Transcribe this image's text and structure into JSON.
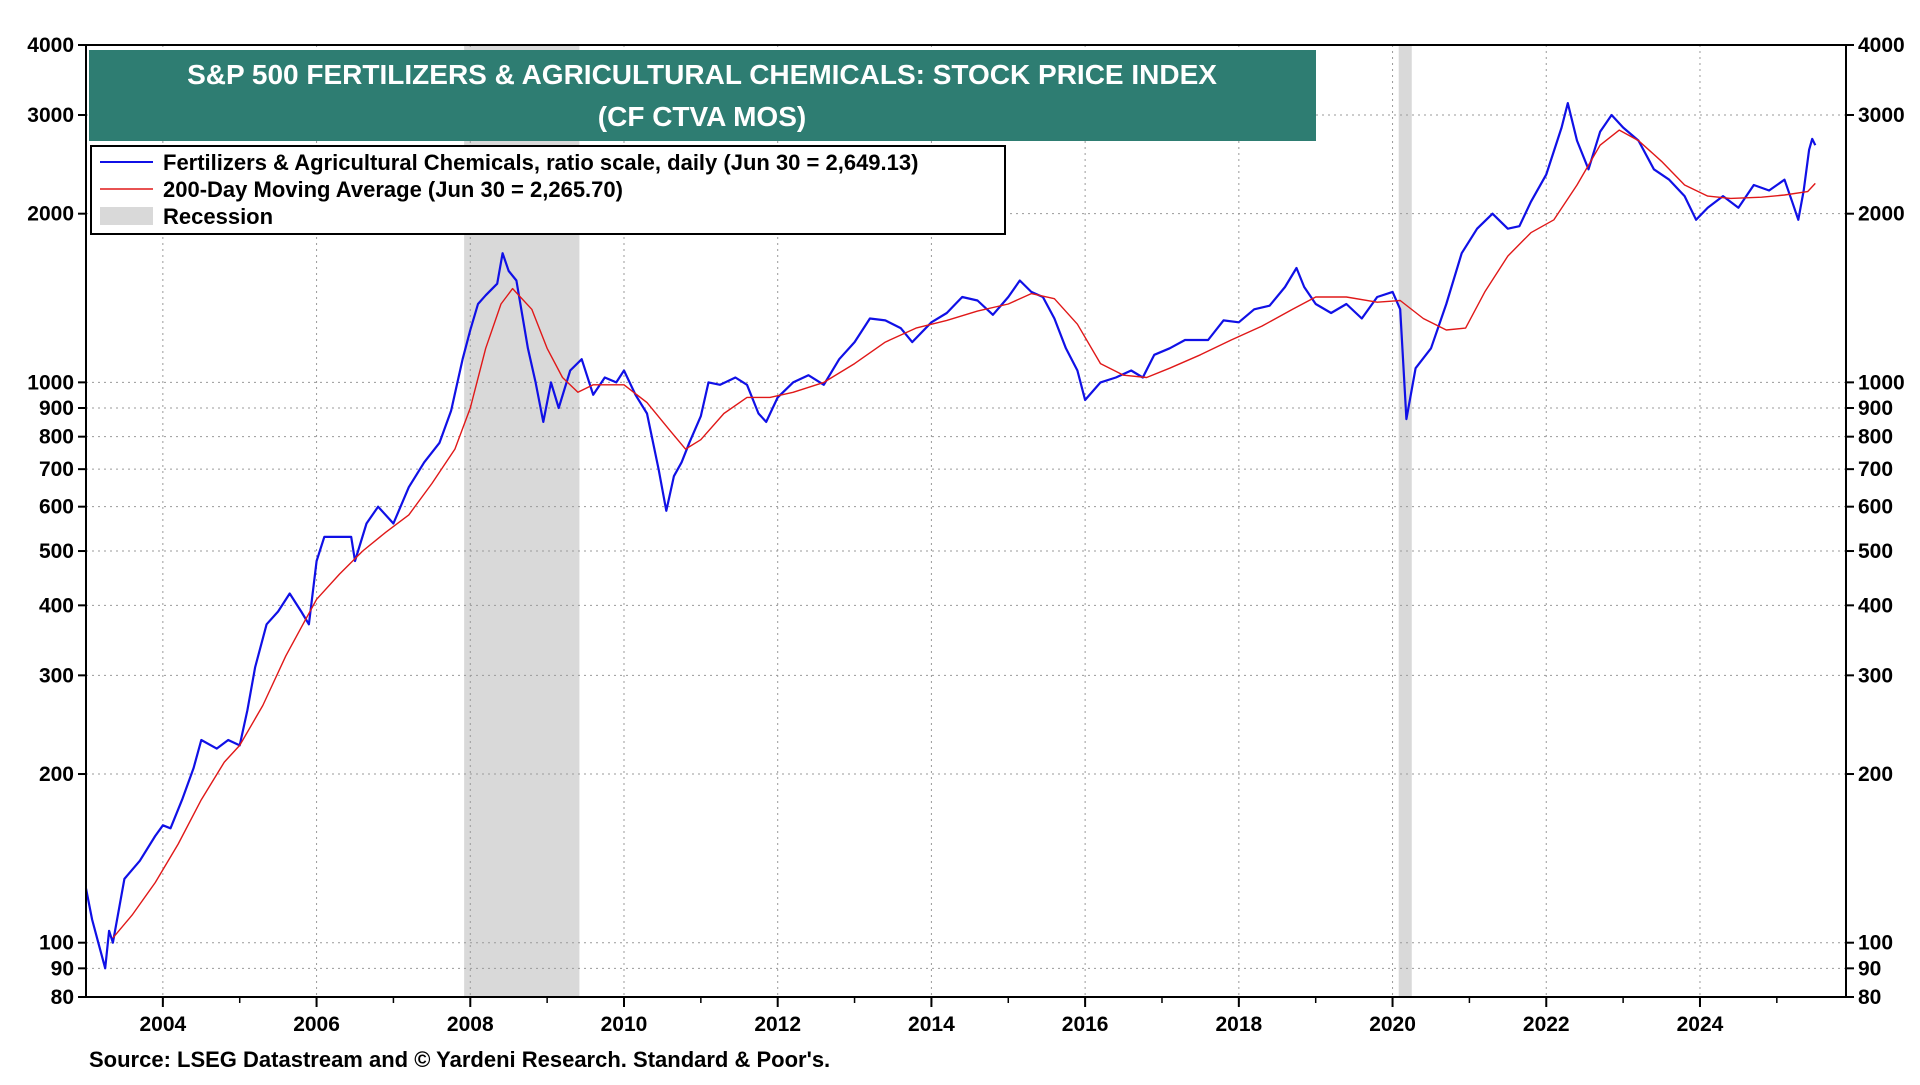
{
  "colors": {
    "title_bg": "#2E7D72",
    "title_text": "#ffffff",
    "price_line": "#1010E6",
    "ma_line": "#E01818",
    "recession": "#D9D9D9",
    "grid": "#9A9A9A"
  },
  "chart_data": {
    "type": "line",
    "title_line1": "S&P 500 FERTILIZERS & AGRICULTURAL CHEMICALS: STOCK PRICE INDEX",
    "title_line2": "(CF CTVA MOS)",
    "y_scale": "log",
    "ylim": [
      80,
      4000
    ],
    "xlim": [
      2003.0,
      2025.9
    ],
    "grid": true,
    "legend_position": "top-left",
    "y_ticks": [
      80,
      90,
      100,
      200,
      300,
      400,
      500,
      600,
      700,
      800,
      900,
      1000,
      2000,
      3000,
      4000
    ],
    "y_tick_labels": [
      "80",
      "90",
      "100",
      "200",
      "300",
      "400",
      "500",
      "600",
      "700",
      "800",
      "900",
      "1000",
      "2000",
      "3000",
      "4000"
    ],
    "x_ticks": [
      2004,
      2006,
      2008,
      2010,
      2012,
      2014,
      2016,
      2018,
      2020,
      2022,
      2024
    ],
    "x_tick_labels": [
      "2004",
      "2006",
      "2008",
      "2010",
      "2012",
      "2014",
      "2016",
      "2018",
      "2020",
      "2022",
      "2024"
    ],
    "recessions": [
      [
        2007.92,
        2009.42
      ],
      [
        2020.08,
        2020.25
      ]
    ],
    "legend": [
      {
        "label": "Fertilizers & Agricultural Chemicals, ratio scale, daily (Jun 30 = 2,649.13)",
        "type": "line",
        "color": "#1010E6"
      },
      {
        "label": "200-Day Moving Average (Jun 30 = 2,265.70)",
        "type": "line",
        "color": "#E01818"
      },
      {
        "label": "Recession",
        "type": "box",
        "color": "#D9D9D9"
      }
    ],
    "series": [
      {
        "name": "Fertilizers & Agricultural Chemicals, ratio scale, daily (Jun 30 = 2,649.13)",
        "color": "#1010E6",
        "points": [
          [
            2003.0,
            125
          ],
          [
            2003.08,
            110
          ],
          [
            2003.16,
            100
          ],
          [
            2003.25,
            90
          ],
          [
            2003.3,
            105
          ],
          [
            2003.35,
            100
          ],
          [
            2003.5,
            130
          ],
          [
            2003.7,
            140
          ],
          [
            2003.9,
            155
          ],
          [
            2004.0,
            162
          ],
          [
            2004.1,
            160
          ],
          [
            2004.25,
            180
          ],
          [
            2004.4,
            205
          ],
          [
            2004.5,
            230
          ],
          [
            2004.7,
            222
          ],
          [
            2004.85,
            230
          ],
          [
            2005.0,
            225
          ],
          [
            2005.1,
            260
          ],
          [
            2005.2,
            310
          ],
          [
            2005.35,
            370
          ],
          [
            2005.5,
            390
          ],
          [
            2005.65,
            420
          ],
          [
            2005.8,
            390
          ],
          [
            2005.9,
            370
          ],
          [
            2006.0,
            480
          ],
          [
            2006.1,
            530
          ],
          [
            2006.3,
            530
          ],
          [
            2006.45,
            530
          ],
          [
            2006.5,
            480
          ],
          [
            2006.65,
            560
          ],
          [
            2006.8,
            600
          ],
          [
            2007.0,
            560
          ],
          [
            2007.2,
            650
          ],
          [
            2007.4,
            720
          ],
          [
            2007.6,
            780
          ],
          [
            2007.75,
            890
          ],
          [
            2007.9,
            1100
          ],
          [
            2008.0,
            1240
          ],
          [
            2008.1,
            1380
          ],
          [
            2008.2,
            1430
          ],
          [
            2008.35,
            1500
          ],
          [
            2008.42,
            1700
          ],
          [
            2008.5,
            1580
          ],
          [
            2008.6,
            1520
          ],
          [
            2008.75,
            1150
          ],
          [
            2008.85,
            1000
          ],
          [
            2008.95,
            850
          ],
          [
            2009.05,
            1000
          ],
          [
            2009.15,
            900
          ],
          [
            2009.3,
            1050
          ],
          [
            2009.45,
            1100
          ],
          [
            2009.6,
            950
          ],
          [
            2009.75,
            1020
          ],
          [
            2009.9,
            1000
          ],
          [
            2010.0,
            1050
          ],
          [
            2010.15,
            950
          ],
          [
            2010.3,
            880
          ],
          [
            2010.45,
            700
          ],
          [
            2010.55,
            590
          ],
          [
            2010.65,
            680
          ],
          [
            2010.75,
            720
          ],
          [
            2010.85,
            780
          ],
          [
            2011.0,
            870
          ],
          [
            2011.1,
            1000
          ],
          [
            2011.25,
            990
          ],
          [
            2011.45,
            1020
          ],
          [
            2011.6,
            990
          ],
          [
            2011.75,
            880
          ],
          [
            2011.85,
            850
          ],
          [
            2012.0,
            940
          ],
          [
            2012.2,
            1000
          ],
          [
            2012.4,
            1030
          ],
          [
            2012.6,
            990
          ],
          [
            2012.8,
            1100
          ],
          [
            2013.0,
            1180
          ],
          [
            2013.2,
            1300
          ],
          [
            2013.4,
            1290
          ],
          [
            2013.6,
            1250
          ],
          [
            2013.75,
            1180
          ],
          [
            2014.0,
            1280
          ],
          [
            2014.2,
            1330
          ],
          [
            2014.4,
            1420
          ],
          [
            2014.6,
            1400
          ],
          [
            2014.8,
            1320
          ],
          [
            2015.0,
            1420
          ],
          [
            2015.15,
            1520
          ],
          [
            2015.3,
            1450
          ],
          [
            2015.45,
            1420
          ],
          [
            2015.6,
            1300
          ],
          [
            2015.75,
            1150
          ],
          [
            2015.9,
            1050
          ],
          [
            2016.0,
            930
          ],
          [
            2016.2,
            1000
          ],
          [
            2016.4,
            1020
          ],
          [
            2016.6,
            1050
          ],
          [
            2016.75,
            1020
          ],
          [
            2016.9,
            1120
          ],
          [
            2017.1,
            1150
          ],
          [
            2017.3,
            1190
          ],
          [
            2017.6,
            1190
          ],
          [
            2017.8,
            1290
          ],
          [
            2018.0,
            1280
          ],
          [
            2018.2,
            1350
          ],
          [
            2018.4,
            1370
          ],
          [
            2018.6,
            1480
          ],
          [
            2018.75,
            1600
          ],
          [
            2018.85,
            1480
          ],
          [
            2019.0,
            1380
          ],
          [
            2019.2,
            1330
          ],
          [
            2019.4,
            1380
          ],
          [
            2019.6,
            1300
          ],
          [
            2019.8,
            1420
          ],
          [
            2020.0,
            1450
          ],
          [
            2020.1,
            1350
          ],
          [
            2020.18,
            860
          ],
          [
            2020.3,
            1060
          ],
          [
            2020.5,
            1150
          ],
          [
            2020.7,
            1380
          ],
          [
            2020.9,
            1700
          ],
          [
            2021.1,
            1880
          ],
          [
            2021.3,
            2000
          ],
          [
            2021.5,
            1880
          ],
          [
            2021.65,
            1900
          ],
          [
            2021.8,
            2100
          ],
          [
            2022.0,
            2350
          ],
          [
            2022.2,
            2850
          ],
          [
            2022.28,
            3150
          ],
          [
            2022.4,
            2700
          ],
          [
            2022.55,
            2400
          ],
          [
            2022.7,
            2800
          ],
          [
            2022.85,
            3000
          ],
          [
            2023.0,
            2850
          ],
          [
            2023.2,
            2700
          ],
          [
            2023.4,
            2400
          ],
          [
            2023.6,
            2300
          ],
          [
            2023.8,
            2150
          ],
          [
            2023.95,
            1950
          ],
          [
            2024.1,
            2050
          ],
          [
            2024.3,
            2150
          ],
          [
            2024.5,
            2050
          ],
          [
            2024.7,
            2250
          ],
          [
            2024.9,
            2200
          ],
          [
            2025.1,
            2300
          ],
          [
            2025.2,
            2100
          ],
          [
            2025.28,
            1950
          ],
          [
            2025.35,
            2200
          ],
          [
            2025.42,
            2600
          ],
          [
            2025.46,
            2720
          ],
          [
            2025.5,
            2650
          ]
        ]
      },
      {
        "name": "200-Day Moving Average (Jun 30 = 2,265.70)",
        "color": "#E01818",
        "points": [
          [
            2003.35,
            102
          ],
          [
            2003.6,
            112
          ],
          [
            2003.9,
            128
          ],
          [
            2004.2,
            150
          ],
          [
            2004.5,
            180
          ],
          [
            2004.8,
            210
          ],
          [
            2005.0,
            225
          ],
          [
            2005.3,
            265
          ],
          [
            2005.6,
            325
          ],
          [
            2005.8,
            365
          ],
          [
            2006.0,
            410
          ],
          [
            2006.3,
            455
          ],
          [
            2006.6,
            500
          ],
          [
            2006.9,
            540
          ],
          [
            2007.2,
            580
          ],
          [
            2007.5,
            660
          ],
          [
            2007.8,
            760
          ],
          [
            2008.0,
            900
          ],
          [
            2008.2,
            1150
          ],
          [
            2008.4,
            1380
          ],
          [
            2008.55,
            1470
          ],
          [
            2008.8,
            1350
          ],
          [
            2009.0,
            1150
          ],
          [
            2009.2,
            1020
          ],
          [
            2009.4,
            960
          ],
          [
            2009.6,
            990
          ],
          [
            2009.8,
            990
          ],
          [
            2010.0,
            990
          ],
          [
            2010.3,
            920
          ],
          [
            2010.6,
            820
          ],
          [
            2010.8,
            760
          ],
          [
            2011.0,
            790
          ],
          [
            2011.3,
            880
          ],
          [
            2011.6,
            940
          ],
          [
            2011.9,
            940
          ],
          [
            2012.2,
            960
          ],
          [
            2012.6,
            1000
          ],
          [
            2013.0,
            1080
          ],
          [
            2013.4,
            1180
          ],
          [
            2013.8,
            1250
          ],
          [
            2014.2,
            1290
          ],
          [
            2014.6,
            1340
          ],
          [
            2015.0,
            1380
          ],
          [
            2015.3,
            1440
          ],
          [
            2015.6,
            1410
          ],
          [
            2015.9,
            1270
          ],
          [
            2016.2,
            1080
          ],
          [
            2016.5,
            1030
          ],
          [
            2016.8,
            1020
          ],
          [
            2017.1,
            1060
          ],
          [
            2017.5,
            1120
          ],
          [
            2017.9,
            1190
          ],
          [
            2018.3,
            1260
          ],
          [
            2018.7,
            1350
          ],
          [
            2019.0,
            1420
          ],
          [
            2019.4,
            1420
          ],
          [
            2019.8,
            1390
          ],
          [
            2020.1,
            1400
          ],
          [
            2020.4,
            1300
          ],
          [
            2020.7,
            1240
          ],
          [
            2020.95,
            1250
          ],
          [
            2021.2,
            1450
          ],
          [
            2021.5,
            1680
          ],
          [
            2021.8,
            1850
          ],
          [
            2022.1,
            1950
          ],
          [
            2022.4,
            2250
          ],
          [
            2022.7,
            2650
          ],
          [
            2022.95,
            2820
          ],
          [
            2023.2,
            2700
          ],
          [
            2023.5,
            2480
          ],
          [
            2023.8,
            2250
          ],
          [
            2024.1,
            2150
          ],
          [
            2024.4,
            2130
          ],
          [
            2024.8,
            2140
          ],
          [
            2025.1,
            2160
          ],
          [
            2025.4,
            2190
          ],
          [
            2025.5,
            2265
          ]
        ]
      }
    ],
    "source": "Source: LSEG Datastream and © Yardeni Research. Standard & Poor's."
  }
}
